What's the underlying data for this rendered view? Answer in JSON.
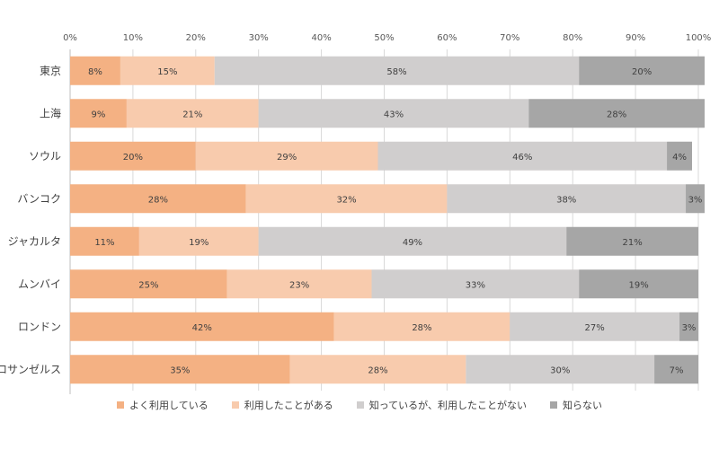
{
  "chart_data": {
    "type": "bar",
    "orientation": "horizontal",
    "stacked": true,
    "percent": true,
    "x_ticks": [
      "0%",
      "10%",
      "20%",
      "30%",
      "40%",
      "50%",
      "60%",
      "70%",
      "80%",
      "90%",
      "100%"
    ],
    "categories": [
      "東京",
      "上海",
      "ソウル",
      "バンコク",
      "ジャカルタ",
      "ムンバイ",
      "ロンドン",
      "ロサンゼルス"
    ],
    "series": [
      {
        "name": "よく利用している",
        "color": "#f4b183",
        "values": [
          8,
          9,
          20,
          28,
          11,
          25,
          42,
          35
        ]
      },
      {
        "name": "利用したことがある",
        "color": "#f8cbad",
        "values": [
          15,
          21,
          29,
          32,
          19,
          23,
          28,
          28
        ]
      },
      {
        "name": "知っているが、利用したことがない",
        "color": "#d0cece",
        "values": [
          58,
          43,
          46,
          38,
          49,
          33,
          27,
          30
        ]
      },
      {
        "name": "知らない",
        "color": "#a6a6a6",
        "values": [
          20,
          28,
          4,
          3,
          21,
          19,
          3,
          7
        ]
      }
    ],
    "xlim": [
      0,
      100
    ],
    "legend_position": "bottom",
    "grid": true
  }
}
